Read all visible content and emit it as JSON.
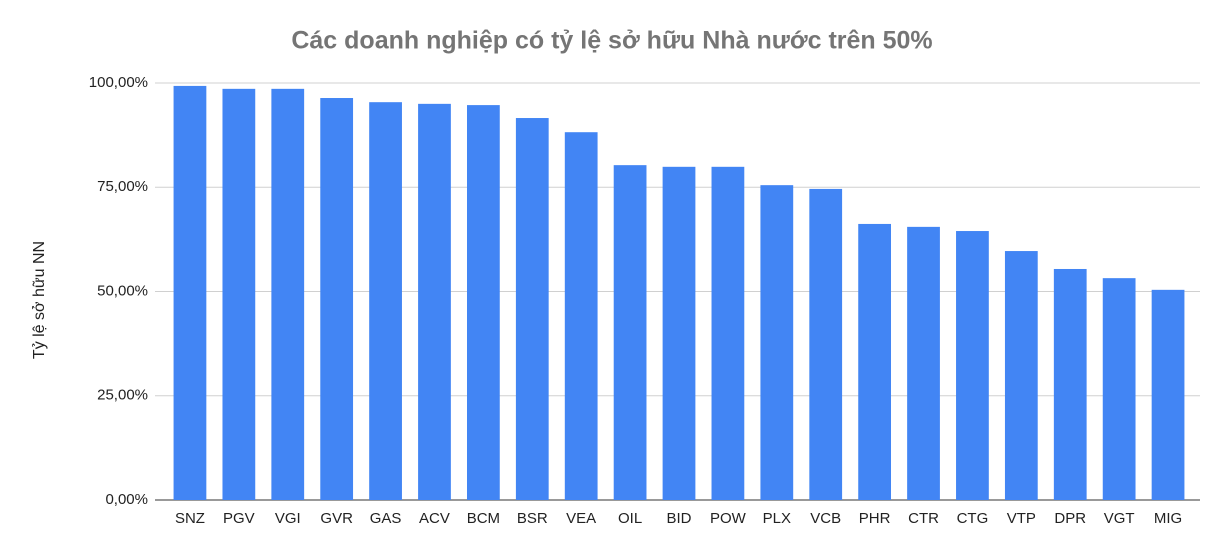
{
  "chart_data": {
    "type": "bar",
    "title": "Các doanh nghiệp có tỷ lệ sở hữu Nhà nước trên 50%",
    "y_label": "Tỷ lệ sở hữu NN",
    "categories": [
      "SNZ",
      "PGV",
      "VGI",
      "GVR",
      "GAS",
      "ACV",
      "BCM",
      "BSR",
      "VEA",
      "OIL",
      "BID",
      "POW",
      "PLX",
      "VCB",
      "PHR",
      "CTR",
      "CTG",
      "VTP",
      "DPR",
      "VGT",
      "MIG"
    ],
    "values": [
      99.3,
      98.6,
      98.6,
      96.4,
      95.4,
      95.0,
      94.7,
      91.6,
      88.2,
      80.3,
      79.9,
      79.9,
      75.5,
      74.6,
      66.2,
      65.5,
      64.5,
      59.7,
      55.4,
      53.2,
      50.4
    ],
    "color": "#4285f4",
    "ylim": [
      0,
      100
    ],
    "yticks": [
      {
        "value": 0,
        "label": "0,00%"
      },
      {
        "value": 25,
        "label": "25,00%"
      },
      {
        "value": 50,
        "label": "50,00%"
      },
      {
        "value": 75,
        "label": "75,00%"
      },
      {
        "value": 100,
        "label": "100,00%"
      }
    ],
    "grid": true
  }
}
